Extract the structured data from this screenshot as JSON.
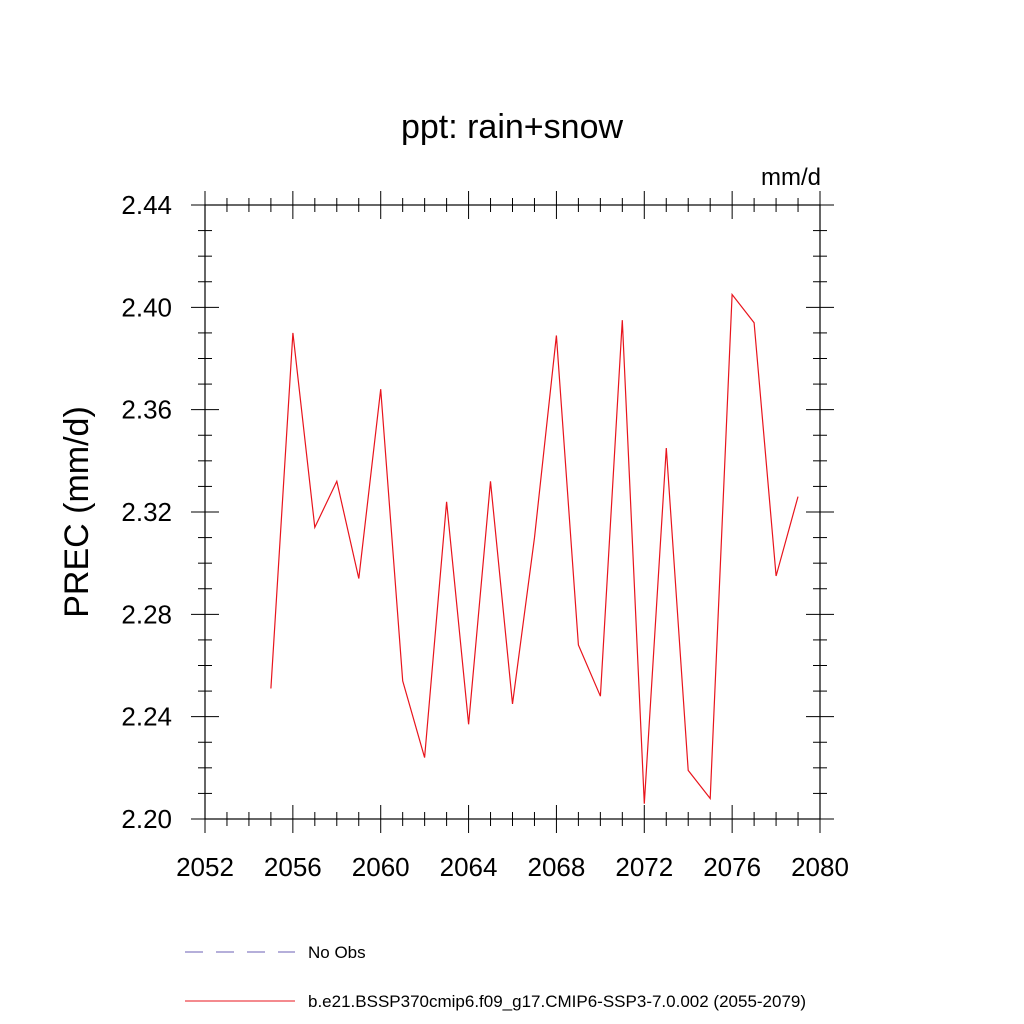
{
  "chart_data": {
    "type": "line",
    "title": "ppt: rain+snow",
    "units": "mm/d",
    "xlabel": "",
    "ylabel": "PREC  (mm/d)",
    "xlim": [
      2052,
      2080
    ],
    "ylim": [
      2.2,
      2.44
    ],
    "xticks": [
      2052,
      2056,
      2060,
      2064,
      2068,
      2072,
      2076,
      2080
    ],
    "xtick_labels": [
      "2052",
      "2056",
      "2060",
      "2064",
      "2068",
      "2072",
      "2076",
      "2080"
    ],
    "yticks": [
      2.2,
      2.24,
      2.28,
      2.32,
      2.36,
      2.4,
      2.44
    ],
    "ytick_labels": [
      "2.20",
      "2.24",
      "2.28",
      "2.32",
      "2.36",
      "2.40",
      "2.44"
    ],
    "grid": false,
    "legend_position": "bottom",
    "series": [
      {
        "name": "b.e21.BSSP370cmip6.f09_g17.CMIP6-SSP3-7.0.002 (2055-2079)",
        "color": "#e8141c",
        "x": [
          2055,
          2056,
          2057,
          2058,
          2059,
          2060,
          2061,
          2062,
          2063,
          2064,
          2065,
          2066,
          2067,
          2068,
          2069,
          2070,
          2071,
          2072,
          2073,
          2074,
          2075,
          2076,
          2077,
          2078,
          2079
        ],
        "y": [
          2.251,
          2.39,
          2.314,
          2.332,
          2.294,
          2.368,
          2.254,
          2.224,
          2.324,
          2.237,
          2.332,
          2.245,
          2.31,
          2.389,
          2.268,
          2.248,
          2.395,
          2.206,
          2.345,
          2.219,
          2.208,
          2.405,
          2.394,
          2.295,
          2.326
        ]
      }
    ],
    "legend": [
      {
        "label": "No Obs",
        "color": "#6b5fb5",
        "dash": true
      },
      {
        "label": "b.e21.BSSP370cmip6.f09_g17.CMIP6-SSP3-7.0.002 (2055-2079)",
        "color": "#e8141c",
        "dash": false
      }
    ]
  }
}
